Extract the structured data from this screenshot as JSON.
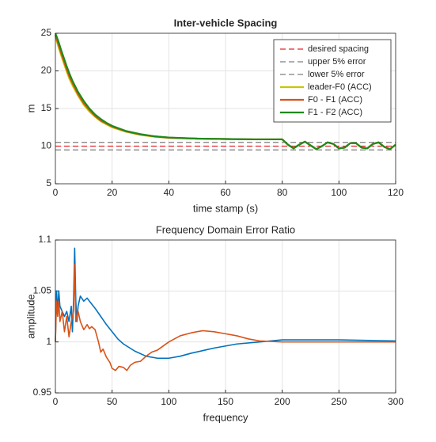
{
  "chart_data": [
    {
      "type": "line",
      "title": "Inter-vehicle Spacing",
      "xlabel": "time stamp (s)",
      "ylabel": "m",
      "xlim": [
        0,
        120
      ],
      "xticks": [
        0,
        20,
        40,
        60,
        80,
        100,
        120
      ],
      "ylim": [
        5,
        25
      ],
      "yticks": [
        5,
        10,
        15,
        20,
        25
      ],
      "grid": true,
      "legend": "northeast",
      "series": [
        {
          "name": "desired spacing",
          "color": "#e8262b",
          "dashed": true,
          "x": [
            0,
            120
          ],
          "values": [
            10,
            10
          ]
        },
        {
          "name": "upper 5% error",
          "color": "#7f7f7f",
          "dashed": true,
          "x": [
            0,
            120
          ],
          "values": [
            10.5,
            10.5
          ]
        },
        {
          "name": "lower 5% error",
          "color": "#7f7f7f",
          "dashed": true,
          "x": [
            0,
            120
          ],
          "values": [
            9.5,
            9.5
          ]
        },
        {
          "name": "leader-F0 (ACC)",
          "color": "#c8c800",
          "dashed": false,
          "x": [
            0,
            1,
            2,
            3,
            4,
            5,
            6,
            8,
            10,
            12,
            14,
            16,
            18,
            20,
            25,
            30,
            35,
            40,
            50,
            60,
            70,
            80,
            82,
            84,
            86,
            88,
            90,
            92,
            94,
            96,
            98,
            100,
            102,
            104,
            106,
            108,
            110,
            112,
            114,
            116,
            118,
            120
          ],
          "values": [
            24.6,
            23.3,
            22.1,
            21.0,
            19.9,
            18.9,
            18.1,
            16.7,
            15.5,
            14.6,
            13.9,
            13.3,
            12.9,
            12.5,
            11.9,
            11.5,
            11.25,
            11.1,
            11.0,
            10.95,
            10.9,
            10.9,
            10.2,
            9.7,
            10.2,
            10.6,
            10.1,
            9.6,
            10.0,
            10.5,
            10.3,
            9.7,
            9.8,
            10.4,
            10.4,
            9.8,
            9.7,
            10.3,
            10.5,
            9.9,
            9.6,
            10.2
          ]
        },
        {
          "name": "F0 - F1 (ACC)",
          "color": "#d95319",
          "dashed": false,
          "x": [
            0,
            1,
            2,
            3,
            4,
            5,
            6,
            8,
            10,
            12,
            14,
            16,
            18,
            20,
            25,
            30,
            35,
            40,
            50,
            60,
            70,
            80,
            82,
            84,
            86,
            88,
            90,
            92,
            94,
            96,
            98,
            100,
            102,
            104,
            106,
            108,
            110,
            112,
            114,
            116,
            118,
            120
          ],
          "values": [
            24.8,
            23.6,
            22.4,
            21.3,
            20.2,
            19.2,
            18.4,
            16.9,
            15.7,
            14.8,
            14.0,
            13.4,
            13.0,
            12.6,
            11.95,
            11.55,
            11.3,
            11.12,
            11.0,
            10.95,
            10.9,
            10.9,
            10.2,
            9.7,
            10.2,
            10.6,
            10.1,
            9.6,
            10.0,
            10.5,
            10.3,
            9.7,
            9.8,
            10.4,
            10.4,
            9.8,
            9.7,
            10.3,
            10.5,
            9.9,
            9.6,
            10.2
          ]
        },
        {
          "name": "F1 - F2 (ACC)",
          "color": "#1e8a1e",
          "dashed": false,
          "x": [
            0,
            1,
            2,
            3,
            4,
            5,
            6,
            8,
            10,
            12,
            14,
            16,
            18,
            20,
            25,
            30,
            35,
            40,
            50,
            60,
            70,
            80,
            82,
            84,
            86,
            88,
            90,
            92,
            94,
            96,
            98,
            100,
            102,
            104,
            106,
            108,
            110,
            112,
            114,
            116,
            118,
            120
          ],
          "values": [
            25,
            24,
            22.8,
            21.7,
            20.6,
            19.6,
            18.7,
            17.2,
            16,
            15,
            14.2,
            13.6,
            13.1,
            12.7,
            12.0,
            11.6,
            11.3,
            11.15,
            11.0,
            10.95,
            10.9,
            10.9,
            10.2,
            9.7,
            10.2,
            10.6,
            10.1,
            9.6,
            10.0,
            10.5,
            10.3,
            9.7,
            9.8,
            10.4,
            10.4,
            9.8,
            9.7,
            10.3,
            10.5,
            9.9,
            9.6,
            10.2
          ]
        }
      ]
    },
    {
      "type": "line",
      "title": "Frequency Domain Error Ratio",
      "xlabel": "frequency",
      "ylabel": "amplitude",
      "xlim": [
        0,
        300
      ],
      "xticks": [
        0,
        50,
        100,
        150,
        200,
        250,
        300
      ],
      "ylim": [
        0.95,
        1.1
      ],
      "yticks": [
        0.95,
        1,
        1.05,
        1.1
      ],
      "grid": true,
      "series": [
        {
          "color": "#0072bd",
          "x": [
            0,
            1,
            2,
            3,
            4,
            6,
            8,
            10,
            12,
            14,
            15,
            16,
            17,
            18,
            19,
            20,
            22,
            25,
            28,
            30,
            35,
            40,
            45,
            50,
            55,
            60,
            70,
            80,
            90,
            100,
            110,
            120,
            140,
            160,
            180,
            200,
            220,
            250,
            300
          ],
          "values": [
            1.0,
            1.05,
            1.03,
            1.05,
            1.035,
            1.03,
            1.025,
            1.03,
            1.02,
            1.035,
            1.01,
            1.04,
            1.092,
            1.04,
            1.02,
            1.035,
            1.045,
            1.04,
            1.043,
            1.04,
            1.033,
            1.025,
            1.017,
            1.01,
            1.003,
            0.998,
            0.991,
            0.986,
            0.984,
            0.984,
            0.986,
            0.989,
            0.994,
            0.998,
            1.0,
            1.002,
            1.002,
            1.002,
            1.001
          ]
        },
        {
          "color": "#d95319",
          "x": [
            0,
            1,
            2,
            3,
            4,
            6,
            8,
            10,
            12,
            14,
            16,
            17,
            18,
            20,
            22,
            25,
            28,
            30,
            32,
            35,
            38,
            40,
            42,
            45,
            48,
            50,
            53,
            56,
            60,
            63,
            66,
            70,
            75,
            80,
            85,
            90,
            95,
            100,
            110,
            120,
            130,
            140,
            150,
            160,
            170,
            180,
            200,
            250,
            300
          ],
          "values": [
            1.0,
            1.04,
            1.025,
            1.04,
            1.02,
            1.03,
            1.01,
            1.025,
            1.005,
            1.02,
            1.03,
            1.076,
            1.02,
            1.03,
            1.02,
            1.012,
            1.017,
            1.013,
            1.015,
            1.012,
            1.0,
            0.99,
            0.993,
            0.985,
            0.98,
            0.974,
            0.972,
            0.976,
            0.975,
            0.972,
            0.977,
            0.98,
            0.981,
            0.986,
            0.99,
            0.992,
            0.996,
            1.0,
            1.006,
            1.009,
            1.011,
            1.01,
            1.008,
            1.006,
            1.003,
            1.001,
            1.0,
            1.0,
            1.0
          ]
        }
      ]
    }
  ]
}
